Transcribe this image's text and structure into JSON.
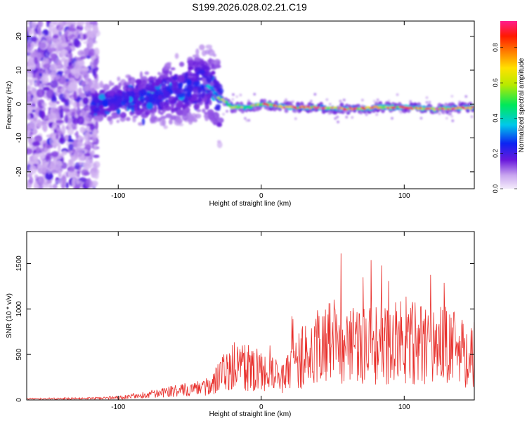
{
  "title": "S199.2026.028.02.21.C19",
  "chart_data": [
    {
      "type": "heatmap",
      "name": "spectrogram",
      "xlabel": "Height of straight line (km)",
      "ylabel": "Frequency (Hz)",
      "xlim": [
        -164,
        149
      ],
      "ylim": [
        -25,
        24.5
      ],
      "xticks": [
        -100,
        0,
        100
      ],
      "yticks": [
        -20,
        -10,
        0,
        10,
        20
      ],
      "ridge": {
        "x": [
          -115,
          -100,
          -80,
          -60,
          -50,
          -40,
          -35,
          -30,
          -20,
          -10,
          0,
          10,
          20,
          40,
          60,
          80,
          100,
          120,
          149
        ],
        "freq": [
          0,
          1,
          2,
          4,
          5,
          6,
          5,
          2,
          -1,
          -1,
          0,
          -0.5,
          -1,
          -1,
          -1.5,
          -1,
          -1,
          -1.5,
          -1
        ]
      },
      "colorbar": {
        "label": "Normalized spectral amplitude",
        "ticks": [
          0.0,
          0.2,
          0.4,
          0.6,
          0.8
        ],
        "tick_labels": [
          "0.0",
          "0.2",
          "0.4",
          "0.6",
          "0.8"
        ],
        "range": [
          0,
          0.95
        ]
      }
    },
    {
      "type": "line",
      "name": "snr",
      "xlabel": "Height of straight line (km)",
      "ylabel": "SNR (10 * v/v)",
      "xlim": [
        -164,
        149
      ],
      "ylim": [
        0,
        1850
      ],
      "xticks": [
        -100,
        0,
        100
      ],
      "yticks": [
        0,
        500,
        1000,
        1500
      ],
      "color": "#e8302c",
      "envelope": {
        "x": [
          -164,
          -120,
          -100,
          -80,
          -60,
          -45,
          -35,
          -27,
          -20,
          -10,
          0,
          10,
          15,
          20,
          30,
          40,
          50,
          60,
          70,
          80,
          90,
          100,
          110,
          120,
          130,
          140,
          149
        ],
        "y": [
          20,
          25,
          40,
          90,
          150,
          190,
          230,
          500,
          650,
          620,
          540,
          450,
          380,
          560,
          850,
          1000,
          1150,
          1050,
          1000,
          1050,
          1100,
          1150,
          1050,
          1100,
          1050,
          900,
          900
        ]
      }
    }
  ]
}
